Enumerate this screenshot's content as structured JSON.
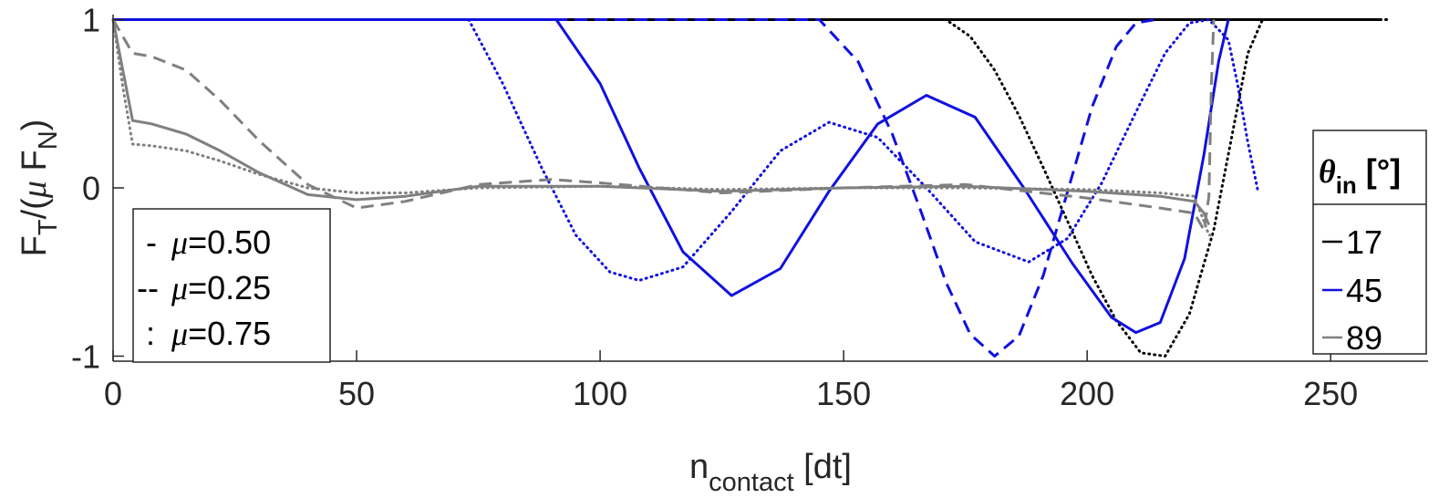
{
  "chart_data": {
    "type": "line",
    "xlabel_main": "n",
    "xlabel_sub": "contact",
    "xlabel_tail": " [dt]",
    "ylabel_main": "F",
    "ylabel_sub1": "T",
    "ylabel_mid": "/(",
    "ylabel_mu": "μ",
    "ylabel_f2": " F",
    "ylabel_sub2": "N",
    "ylabel_end": ")",
    "xlim": [
      0,
      270
    ],
    "ylim": [
      -1.03,
      1.03
    ],
    "xticks": [
      0,
      50,
      100,
      150,
      200,
      250
    ],
    "xtick_labels": [
      "0",
      "50",
      "100",
      "150",
      "200",
      "250"
    ],
    "yticks": [
      -1,
      0,
      1
    ],
    "ytick_labels": [
      "-1",
      "0",
      "1"
    ],
    "grid": false,
    "legend_mu": {
      "placement": "bottom-left",
      "entries": [
        {
          "marker": "-",
          "mu": "μ",
          "value": "=0.50",
          "style": "solid"
        },
        {
          "marker": "--",
          "mu": "μ",
          "value": "=0.25",
          "style": "dashed"
        },
        {
          "marker": ":",
          "mu": "μ",
          "value": "=0.75",
          "style": "dotted"
        }
      ]
    },
    "legend_theta": {
      "placement": "right",
      "title_symbol": "θ",
      "title_sub": "in",
      "title_unit": " [°]",
      "entries": [
        {
          "label": "17",
          "color": "#000000"
        },
        {
          "label": "45",
          "color": "#1010e0"
        },
        {
          "label": "89",
          "color": "#808080"
        }
      ]
    },
    "series": [
      {
        "theta": "17",
        "mu": "0.50",
        "style": "solid",
        "color": "#000000",
        "x": [
          0,
          260
        ],
        "y": [
          1,
          1
        ]
      },
      {
        "theta": "17",
        "mu": "0.25",
        "style": "dashed",
        "color": "#000000",
        "x": [
          0,
          260
        ],
        "y": [
          1,
          1
        ]
      },
      {
        "theta": "17",
        "mu": "0.75",
        "style": "dotted",
        "color": "#000000",
        "x": [
          0,
          171,
          176,
          181,
          186,
          191,
          196,
          201,
          206,
          211,
          216,
          221,
          226,
          230,
          233,
          236,
          262
        ],
        "y": [
          1,
          1,
          0.9,
          0.7,
          0.43,
          0.12,
          -0.2,
          -0.52,
          -0.79,
          -0.98,
          -1.0,
          -0.75,
          -0.25,
          0.35,
          0.8,
          1,
          1
        ]
      },
      {
        "theta": "45",
        "mu": "0.50",
        "style": "solid",
        "color": "#1010e0",
        "x": [
          0,
          91,
          100,
          108,
          117,
          127,
          137,
          147,
          157,
          167,
          177,
          187,
          197,
          205,
          210,
          215,
          220,
          224,
          227,
          229
        ],
        "y": [
          1,
          1,
          0.62,
          0.12,
          -0.38,
          -0.64,
          -0.48,
          -0.02,
          0.38,
          0.55,
          0.42,
          0.0,
          -0.45,
          -0.77,
          -0.86,
          -0.8,
          -0.42,
          0.2,
          0.75,
          1
        ]
      },
      {
        "theta": "45",
        "mu": "0.25",
        "style": "dashed",
        "color": "#1010e0",
        "x": [
          0,
          145,
          153,
          160,
          166,
          171,
          176,
          181,
          186,
          191,
          196,
          201,
          206,
          210,
          214
        ],
        "y": [
          1,
          1,
          0.75,
          0.32,
          -0.15,
          -0.56,
          -0.87,
          -1.0,
          -0.88,
          -0.52,
          -0.02,
          0.48,
          0.84,
          0.98,
          1
        ]
      },
      {
        "theta": "45",
        "mu": "0.75",
        "style": "dotted",
        "color": "#1010e0",
        "x": [
          0,
          73,
          80,
          88,
          95,
          102,
          108,
          117,
          127,
          137,
          147,
          157,
          167,
          177,
          188,
          196,
          203,
          210,
          216,
          221,
          225,
          229,
          231,
          233,
          235
        ],
        "y": [
          1,
          1,
          0.62,
          0.12,
          -0.28,
          -0.5,
          -0.55,
          -0.47,
          -0.14,
          0.22,
          0.39,
          0.3,
          0.0,
          -0.32,
          -0.44,
          -0.3,
          0.03,
          0.45,
          0.8,
          0.98,
          1,
          0.88,
          0.6,
          0.27,
          -0.01
        ]
      },
      {
        "theta": "89",
        "mu": "0.50",
        "style": "solid",
        "color": "#808080",
        "x": [
          0,
          2,
          4,
          8,
          15,
          22,
          30,
          40,
          50,
          60,
          75,
          100,
          125,
          150,
          175,
          200,
          215,
          222,
          224,
          225
        ],
        "y": [
          1,
          0.7,
          0.4,
          0.38,
          0.32,
          0.22,
          0.09,
          -0.04,
          -0.07,
          -0.05,
          0.01,
          0.01,
          -0.02,
          0.0,
          0.01,
          -0.02,
          -0.05,
          -0.08,
          -0.15,
          -0.22
        ]
      },
      {
        "theta": "89",
        "mu": "0.25",
        "style": "dashed",
        "color": "#808080",
        "x": [
          0,
          2,
          4,
          8,
          15,
          22,
          30,
          40,
          50,
          60,
          75,
          90,
          100,
          125,
          150,
          175,
          200,
          215,
          222,
          224,
          225,
          225.5,
          226
        ],
        "y": [
          1,
          0.9,
          0.8,
          0.78,
          0.7,
          0.52,
          0.28,
          0.02,
          -0.12,
          -0.08,
          0.02,
          0.05,
          0.03,
          -0.03,
          0.0,
          0.02,
          -0.06,
          -0.12,
          -0.15,
          -0.25,
          -0.05,
          0.6,
          1
        ]
      },
      {
        "theta": "89",
        "mu": "0.75",
        "style": "dotted",
        "color": "#808080",
        "x": [
          0,
          2,
          4,
          8,
          15,
          22,
          30,
          40,
          50,
          60,
          75,
          100,
          125,
          150,
          175,
          200,
          215,
          222,
          224,
          225,
          226
        ],
        "y": [
          1,
          0.6,
          0.26,
          0.25,
          0.22,
          0.16,
          0.08,
          0.0,
          -0.03,
          -0.03,
          0.0,
          0.01,
          -0.01,
          0.0,
          0.0,
          -0.01,
          -0.03,
          -0.05,
          -0.2,
          -0.28,
          -0.28
        ]
      }
    ]
  }
}
